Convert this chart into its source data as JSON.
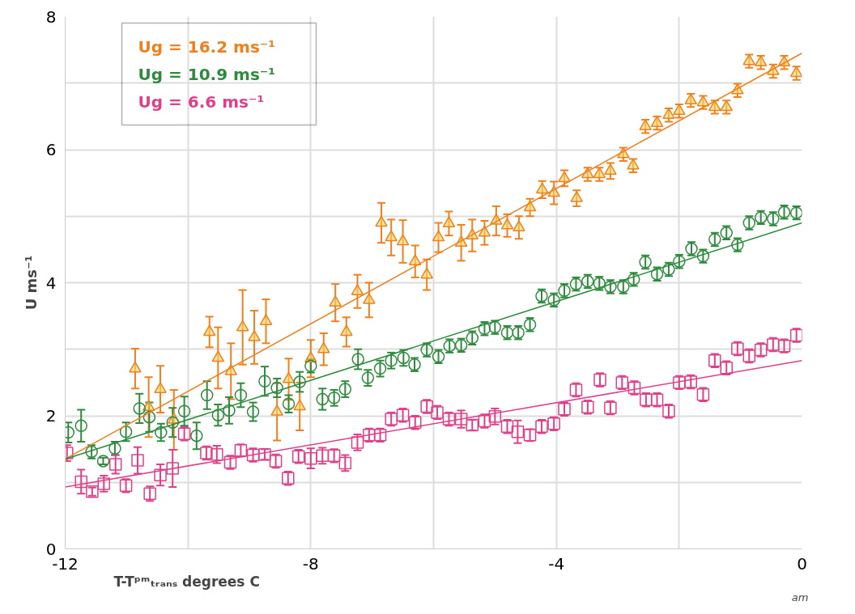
{
  "chart_data": {
    "type": "scatter",
    "xlabel": "T-Tᵖᵐₜᵣₐₙₛ degrees C",
    "ylabel": "U ms⁻¹",
    "annotations": [
      "am"
    ],
    "xlim": [
      -12,
      0
    ],
    "ylim": [
      0,
      8
    ],
    "xticks": [
      -12,
      {
        "value": -10,
        "label": null
      },
      -8,
      {
        "value": -6,
        "label": null
      },
      -4,
      {
        "value": -2,
        "label": null
      },
      0
    ],
    "yticks": [
      0,
      {
        "value": 1,
        "label": null
      },
      2,
      {
        "value": 3,
        "label": null
      },
      4,
      {
        "value": 5,
        "label": null
      },
      6,
      {
        "value": 7,
        "label": null
      },
      8
    ],
    "grid": true,
    "series": [
      {
        "name": "Ug = 16.2 ms⁻¹",
        "color": "#f07f1e",
        "marker": "triangle",
        "x": [
          -10.86,
          -10.64,
          -10.45,
          -10.23,
          -9.65,
          -9.51,
          -9.3,
          -9.11,
          -8.92,
          -8.73,
          -8.55,
          -8.36,
          -8.18,
          -8.0,
          -7.79,
          -7.6,
          -7.42,
          -7.24,
          -7.05,
          -6.85,
          -6.69,
          -6.5,
          -6.3,
          -6.11,
          -5.92,
          -5.75,
          -5.55,
          -5.37,
          -5.17,
          -4.98,
          -4.8,
          -4.61,
          -4.43,
          -4.23,
          -4.04,
          -3.87,
          -3.67,
          -3.49,
          -3.3,
          -3.12,
          -2.91,
          -2.75,
          -2.55,
          -2.36,
          -2.17,
          -2.0,
          -1.81,
          -1.61,
          -1.42,
          -1.23,
          -1.05,
          -0.86,
          -0.67,
          -0.47,
          -0.29,
          -0.09
        ],
        "values": [
          2.71,
          2.13,
          2.4,
          1.94,
          3.26,
          2.87,
          2.67,
          3.33,
          3.18,
          3.42,
          2.06,
          2.55,
          2.14,
          2.86,
          3.0,
          3.7,
          3.26,
          3.87,
          3.74,
          4.9,
          4.68,
          4.62,
          4.32,
          4.12,
          4.68,
          4.89,
          4.6,
          4.71,
          4.75,
          4.93,
          4.86,
          4.83,
          5.13,
          5.4,
          5.35,
          5.57,
          5.27,
          5.63,
          5.63,
          5.68,
          5.93,
          5.76,
          6.35,
          6.4,
          6.52,
          6.58,
          6.74,
          6.71,
          6.64,
          6.64,
          6.89,
          7.33,
          7.31,
          7.18,
          7.31,
          7.15
        ],
        "errors": [
          0.3,
          0.45,
          0.35,
          0.45,
          0.23,
          0.46,
          0.42,
          0.56,
          0.4,
          0.33,
          0.43,
          0.31,
          0.36,
          0.28,
          0.24,
          0.28,
          0.22,
          0.25,
          0.26,
          0.3,
          0.27,
          0.32,
          0.24,
          0.23,
          0.22,
          0.18,
          0.27,
          0.24,
          0.18,
          0.22,
          0.17,
          0.17,
          0.13,
          0.13,
          0.17,
          0.12,
          0.12,
          0.1,
          0.1,
          0.12,
          0.1,
          0.1,
          0.1,
          0.1,
          0.1,
          0.1,
          0.1,
          0.1,
          0.1,
          0.1,
          0.1,
          0.1,
          0.1,
          0.1,
          0.1,
          0.1
        ]
      },
      {
        "name": "Ug = 10.9 ms⁻¹",
        "color": "#2e8b3e",
        "marker": "circle",
        "x": [
          -11.95,
          -11.74,
          -11.57,
          -11.38,
          -11.19,
          -11.01,
          -10.79,
          -10.63,
          -10.44,
          -10.25,
          -10.06,
          -9.86,
          -9.69,
          -9.51,
          -9.33,
          -9.14,
          -8.94,
          -8.75,
          -8.55,
          -8.36,
          -8.18,
          -8.0,
          -7.81,
          -7.62,
          -7.44,
          -7.23,
          -7.07,
          -6.87,
          -6.69,
          -6.49,
          -6.31,
          -6.11,
          -5.92,
          -5.74,
          -5.55,
          -5.37,
          -5.17,
          -5.0,
          -4.8,
          -4.62,
          -4.43,
          -4.24,
          -4.04,
          -3.87,
          -3.68,
          -3.49,
          -3.3,
          -3.12,
          -2.91,
          -2.74,
          -2.55,
          -2.36,
          -2.17,
          -2.0,
          -1.8,
          -1.61,
          -1.42,
          -1.23,
          -1.05,
          -0.86,
          -0.67,
          -0.47,
          -0.29,
          -0.09
        ],
        "values": [
          1.75,
          1.85,
          1.46,
          1.32,
          1.51,
          1.76,
          2.11,
          1.98,
          1.75,
          1.9,
          2.07,
          1.7,
          2.31,
          2.01,
          2.08,
          2.31,
          2.06,
          2.52,
          2.42,
          2.18,
          2.51,
          2.75,
          2.25,
          2.27,
          2.4,
          2.85,
          2.57,
          2.71,
          2.83,
          2.87,
          2.77,
          2.99,
          2.89,
          3.05,
          3.06,
          3.17,
          3.31,
          3.33,
          3.25,
          3.25,
          3.37,
          3.8,
          3.74,
          3.88,
          3.98,
          4.02,
          3.99,
          3.94,
          3.94,
          4.05,
          4.31,
          4.13,
          4.2,
          4.32,
          4.51,
          4.4,
          4.65,
          4.75,
          4.57,
          4.9,
          4.98,
          4.96,
          5.06,
          5.05
        ],
        "errors": [
          0.15,
          0.24,
          0.1,
          0.05,
          0.1,
          0.14,
          0.22,
          0.22,
          0.13,
          0.22,
          0.22,
          0.2,
          0.21,
          0.16,
          0.2,
          0.18,
          0.14,
          0.22,
          0.14,
          0.13,
          0.15,
          0.1,
          0.16,
          0.12,
          0.12,
          0.15,
          0.12,
          0.12,
          0.12,
          0.12,
          0.1,
          0.1,
          0.1,
          0.1,
          0.1,
          0.1,
          0.1,
          0.1,
          0.1,
          0.1,
          0.1,
          0.1,
          0.1,
          0.1,
          0.1,
          0.1,
          0.1,
          0.1,
          0.1,
          0.1,
          0.1,
          0.1,
          0.1,
          0.1,
          0.1,
          0.1,
          0.1,
          0.1,
          0.1,
          0.1,
          0.1,
          0.1,
          0.1,
          0.1
        ]
      },
      {
        "name": "Ug = 6.6 ms⁻¹",
        "color": "#e0408a",
        "marker": "square",
        "x": [
          -11.97,
          -11.74,
          -11.56,
          -11.37,
          -11.18,
          -11.01,
          -10.82,
          -10.62,
          -10.45,
          -10.25,
          -10.06,
          -9.7,
          -9.53,
          -9.31,
          -9.14,
          -8.94,
          -8.75,
          -8.57,
          -8.37,
          -8.2,
          -8.0,
          -7.81,
          -7.62,
          -7.44,
          -7.24,
          -7.05,
          -6.87,
          -6.69,
          -6.5,
          -6.3,
          -6.11,
          -5.94,
          -5.75,
          -5.55,
          -5.37,
          -5.17,
          -5.0,
          -4.8,
          -4.63,
          -4.43,
          -4.24,
          -4.04,
          -3.87,
          -3.68,
          -3.49,
          -3.29,
          -3.12,
          -2.93,
          -2.73,
          -2.54,
          -2.36,
          -2.17,
          -2.0,
          -1.81,
          -1.61,
          -1.42,
          -1.23,
          -1.05,
          -0.86,
          -0.67,
          -0.47,
          -0.29,
          -0.09
        ],
        "values": [
          1.44,
          1.01,
          0.86,
          0.98,
          1.27,
          0.95,
          1.33,
          0.83,
          1.11,
          1.21,
          1.73,
          1.44,
          1.42,
          1.3,
          1.48,
          1.41,
          1.42,
          1.32,
          1.06,
          1.39,
          1.36,
          1.4,
          1.4,
          1.29,
          1.6,
          1.71,
          1.71,
          1.95,
          2.01,
          1.9,
          2.14,
          2.05,
          1.95,
          1.95,
          1.86,
          1.92,
          1.99,
          1.84,
          1.76,
          1.71,
          1.84,
          1.88,
          2.1,
          2.39,
          2.13,
          2.54,
          2.12,
          2.5,
          2.42,
          2.24,
          2.24,
          2.07,
          2.5,
          2.51,
          2.32,
          2.83,
          2.72,
          3.01,
          2.9,
          2.99,
          3.07,
          3.05,
          3.21
        ],
        "errors": [
          0.12,
          0.18,
          0.06,
          0.12,
          0.14,
          0.1,
          0.2,
          0.11,
          0.16,
          0.28,
          0.1,
          0.1,
          0.13,
          0.1,
          0.09,
          0.1,
          0.08,
          0.1,
          0.1,
          0.1,
          0.15,
          0.12,
          0.1,
          0.12,
          0.12,
          0.1,
          0.1,
          0.1,
          0.1,
          0.1,
          0.1,
          0.1,
          0.1,
          0.13,
          0.08,
          0.1,
          0.12,
          0.1,
          0.17,
          0.09,
          0.1,
          0.1,
          0.1,
          0.1,
          0.1,
          0.1,
          0.1,
          0.1,
          0.1,
          0.1,
          0.1,
          0.1,
          0.1,
          0.1,
          0.1,
          0.1,
          0.1,
          0.1,
          0.1,
          0.1,
          0.1,
          0.1,
          0.1
        ]
      },
      {
        "type": "line",
        "color": "#f07f1e",
        "x": [
          -12,
          0
        ],
        "values": [
          1.35,
          7.45
        ]
      },
      {
        "type": "line",
        "color": "#2e8b3e",
        "x": [
          -12,
          0
        ],
        "values": [
          1.35,
          4.9
        ]
      },
      {
        "type": "line",
        "color": "#e0408a",
        "x": [
          -12,
          0
        ],
        "values": [
          0.93,
          2.83
        ]
      }
    ]
  }
}
